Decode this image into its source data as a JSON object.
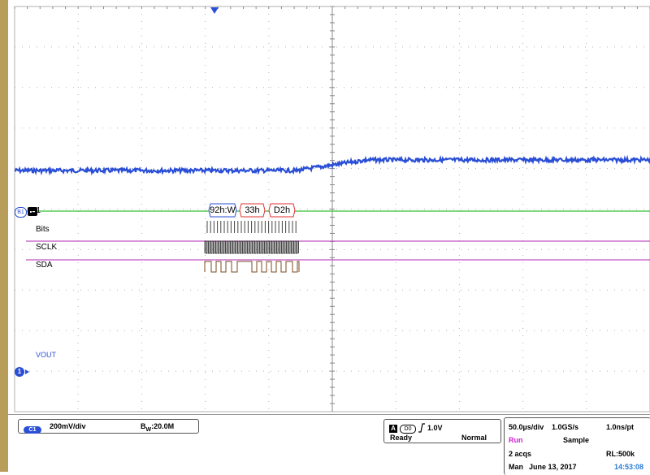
{
  "waveform": {
    "bus_label": "B1",
    "bus_channel": "B1",
    "rows": {
      "bits": "Bits",
      "sclk": "SCLK",
      "sda": "SDA"
    },
    "packets": [
      "92h:W",
      "33h",
      "D2h"
    ],
    "vout_label": "VOUT",
    "ch1_marker": "1"
  },
  "colors": {
    "ch1": "#2a4fd6",
    "bus": "#34c234",
    "digital": "#c050c0",
    "grid": "#b0b0b0",
    "packet_addr": "#2a4fd6",
    "packet_data": "#e03030"
  },
  "status": {
    "ch1_badge": "C1",
    "ch1_scale": "200mV/div",
    "bandwidth": "20.0M",
    "bandwidth_prefix": "B",
    "bandwidth_sub": "W",
    "trig_source": "A",
    "trig_channel": "D0",
    "trig_slope_icon": "rising-edge-icon",
    "trig_level": "1.0V",
    "trig_state": "Ready",
    "trig_mode": "Normal",
    "timebase": "50.0µs/div",
    "sample_rate": "1.0GS/s",
    "resolution": "1.0ns/pt",
    "run_state": "Run",
    "acq_mode": "Sample",
    "acqs": "2 acqs",
    "record_length": "RL:500k",
    "date_mode": "Man",
    "date": "June 13, 2017",
    "time": "14:53:08"
  }
}
